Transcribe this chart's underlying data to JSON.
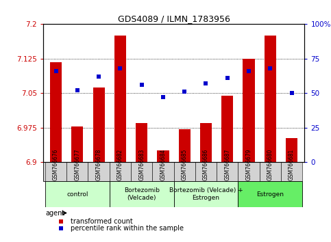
{
  "title": "GDS4089 / ILMN_1783956",
  "samples": [
    "GSM766676",
    "GSM766677",
    "GSM766678",
    "GSM766682",
    "GSM766683",
    "GSM766684",
    "GSM766685",
    "GSM766686",
    "GSM766687",
    "GSM766679",
    "GSM766680",
    "GSM766681"
  ],
  "bar_values": [
    7.118,
    6.978,
    7.062,
    7.175,
    6.985,
    6.926,
    6.972,
    6.985,
    7.045,
    7.125,
    7.175,
    6.952
  ],
  "dot_values": [
    66,
    52,
    62,
    68,
    56,
    47,
    51,
    57,
    61,
    66,
    68,
    50
  ],
  "bar_color": "#cc0000",
  "dot_color": "#0000cc",
  "ylim_left": [
    6.9,
    7.2
  ],
  "ylim_right": [
    0,
    100
  ],
  "yticks_left": [
    6.9,
    6.975,
    7.05,
    7.125,
    7.2
  ],
  "ytick_labels_left": [
    "6.9",
    "6.975",
    "7.05",
    "7.125",
    "7.2"
  ],
  "yticks_right": [
    0,
    25,
    50,
    75,
    100
  ],
  "ytick_labels_right": [
    "0",
    "25",
    "50",
    "75",
    "100%"
  ],
  "gridlines": [
    6.975,
    7.05,
    7.125
  ],
  "groups": [
    {
      "label": "control",
      "start": 0,
      "end": 3,
      "color": "#ccffcc"
    },
    {
      "label": "Bortezomib\n(Velcade)",
      "start": 3,
      "end": 6,
      "color": "#ccffcc"
    },
    {
      "label": "Bortezomib (Velcade) +\nEstrogen",
      "start": 6,
      "end": 9,
      "color": "#ccffcc"
    },
    {
      "label": "Estrogen",
      "start": 9,
      "end": 12,
      "color": "#66ee66"
    }
  ],
  "legend_items": [
    {
      "color": "#cc0000",
      "label": "transformed count"
    },
    {
      "color": "#0000cc",
      "label": "percentile rank within the sample"
    }
  ],
  "agent_label": "agent"
}
